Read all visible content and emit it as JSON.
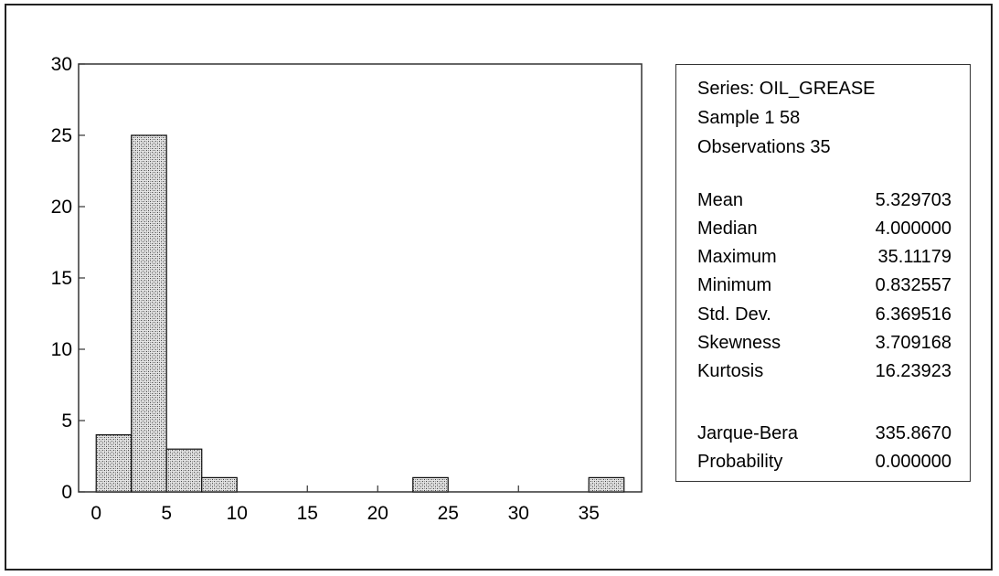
{
  "chart_data": {
    "type": "bar",
    "subtype": "histogram",
    "bins": [
      {
        "start": 0,
        "end": 2.5,
        "count": 4
      },
      {
        "start": 2.5,
        "end": 5,
        "count": 25
      },
      {
        "start": 5,
        "end": 7.5,
        "count": 3
      },
      {
        "start": 7.5,
        "end": 10,
        "count": 1
      },
      {
        "start": 22.5,
        "end": 25,
        "count": 1
      },
      {
        "start": 35,
        "end": 37.5,
        "count": 1
      }
    ],
    "xlim": [
      -1.25,
      38.75
    ],
    "ylim": [
      0,
      30
    ],
    "x_ticks": [
      "0",
      "5",
      "10",
      "15",
      "20",
      "25",
      "30",
      "35"
    ],
    "x_tick_values": [
      0,
      5,
      10,
      15,
      20,
      25,
      30,
      35
    ],
    "y_ticks": [
      "0",
      "5",
      "10",
      "15",
      "20",
      "25",
      "30"
    ],
    "y_tick_values": [
      0,
      5,
      10,
      15,
      20,
      25,
      30
    ],
    "grid": false,
    "bar_fill": "crosshatch gray"
  },
  "stats": {
    "series_label": "Series: OIL_GREASE",
    "sample_label": "Sample 1 58",
    "observations_label": "Observations 35",
    "rows": [
      {
        "name": "Mean",
        "value": "5.329703"
      },
      {
        "name": "Median",
        "value": "4.000000"
      },
      {
        "name": "Maximum",
        "value": "35.11179"
      },
      {
        "name": "Minimum",
        "value": "0.832557"
      },
      {
        "name": "Std. Dev.",
        "value": "6.369516"
      },
      {
        "name": "Skewness",
        "value": "3.709168"
      },
      {
        "name": "Kurtosis",
        "value": "16.23923"
      }
    ],
    "tests": [
      {
        "name": "Jarque-Bera",
        "value": "335.8670"
      },
      {
        "name": "Probability",
        "value": "0.000000"
      }
    ]
  }
}
